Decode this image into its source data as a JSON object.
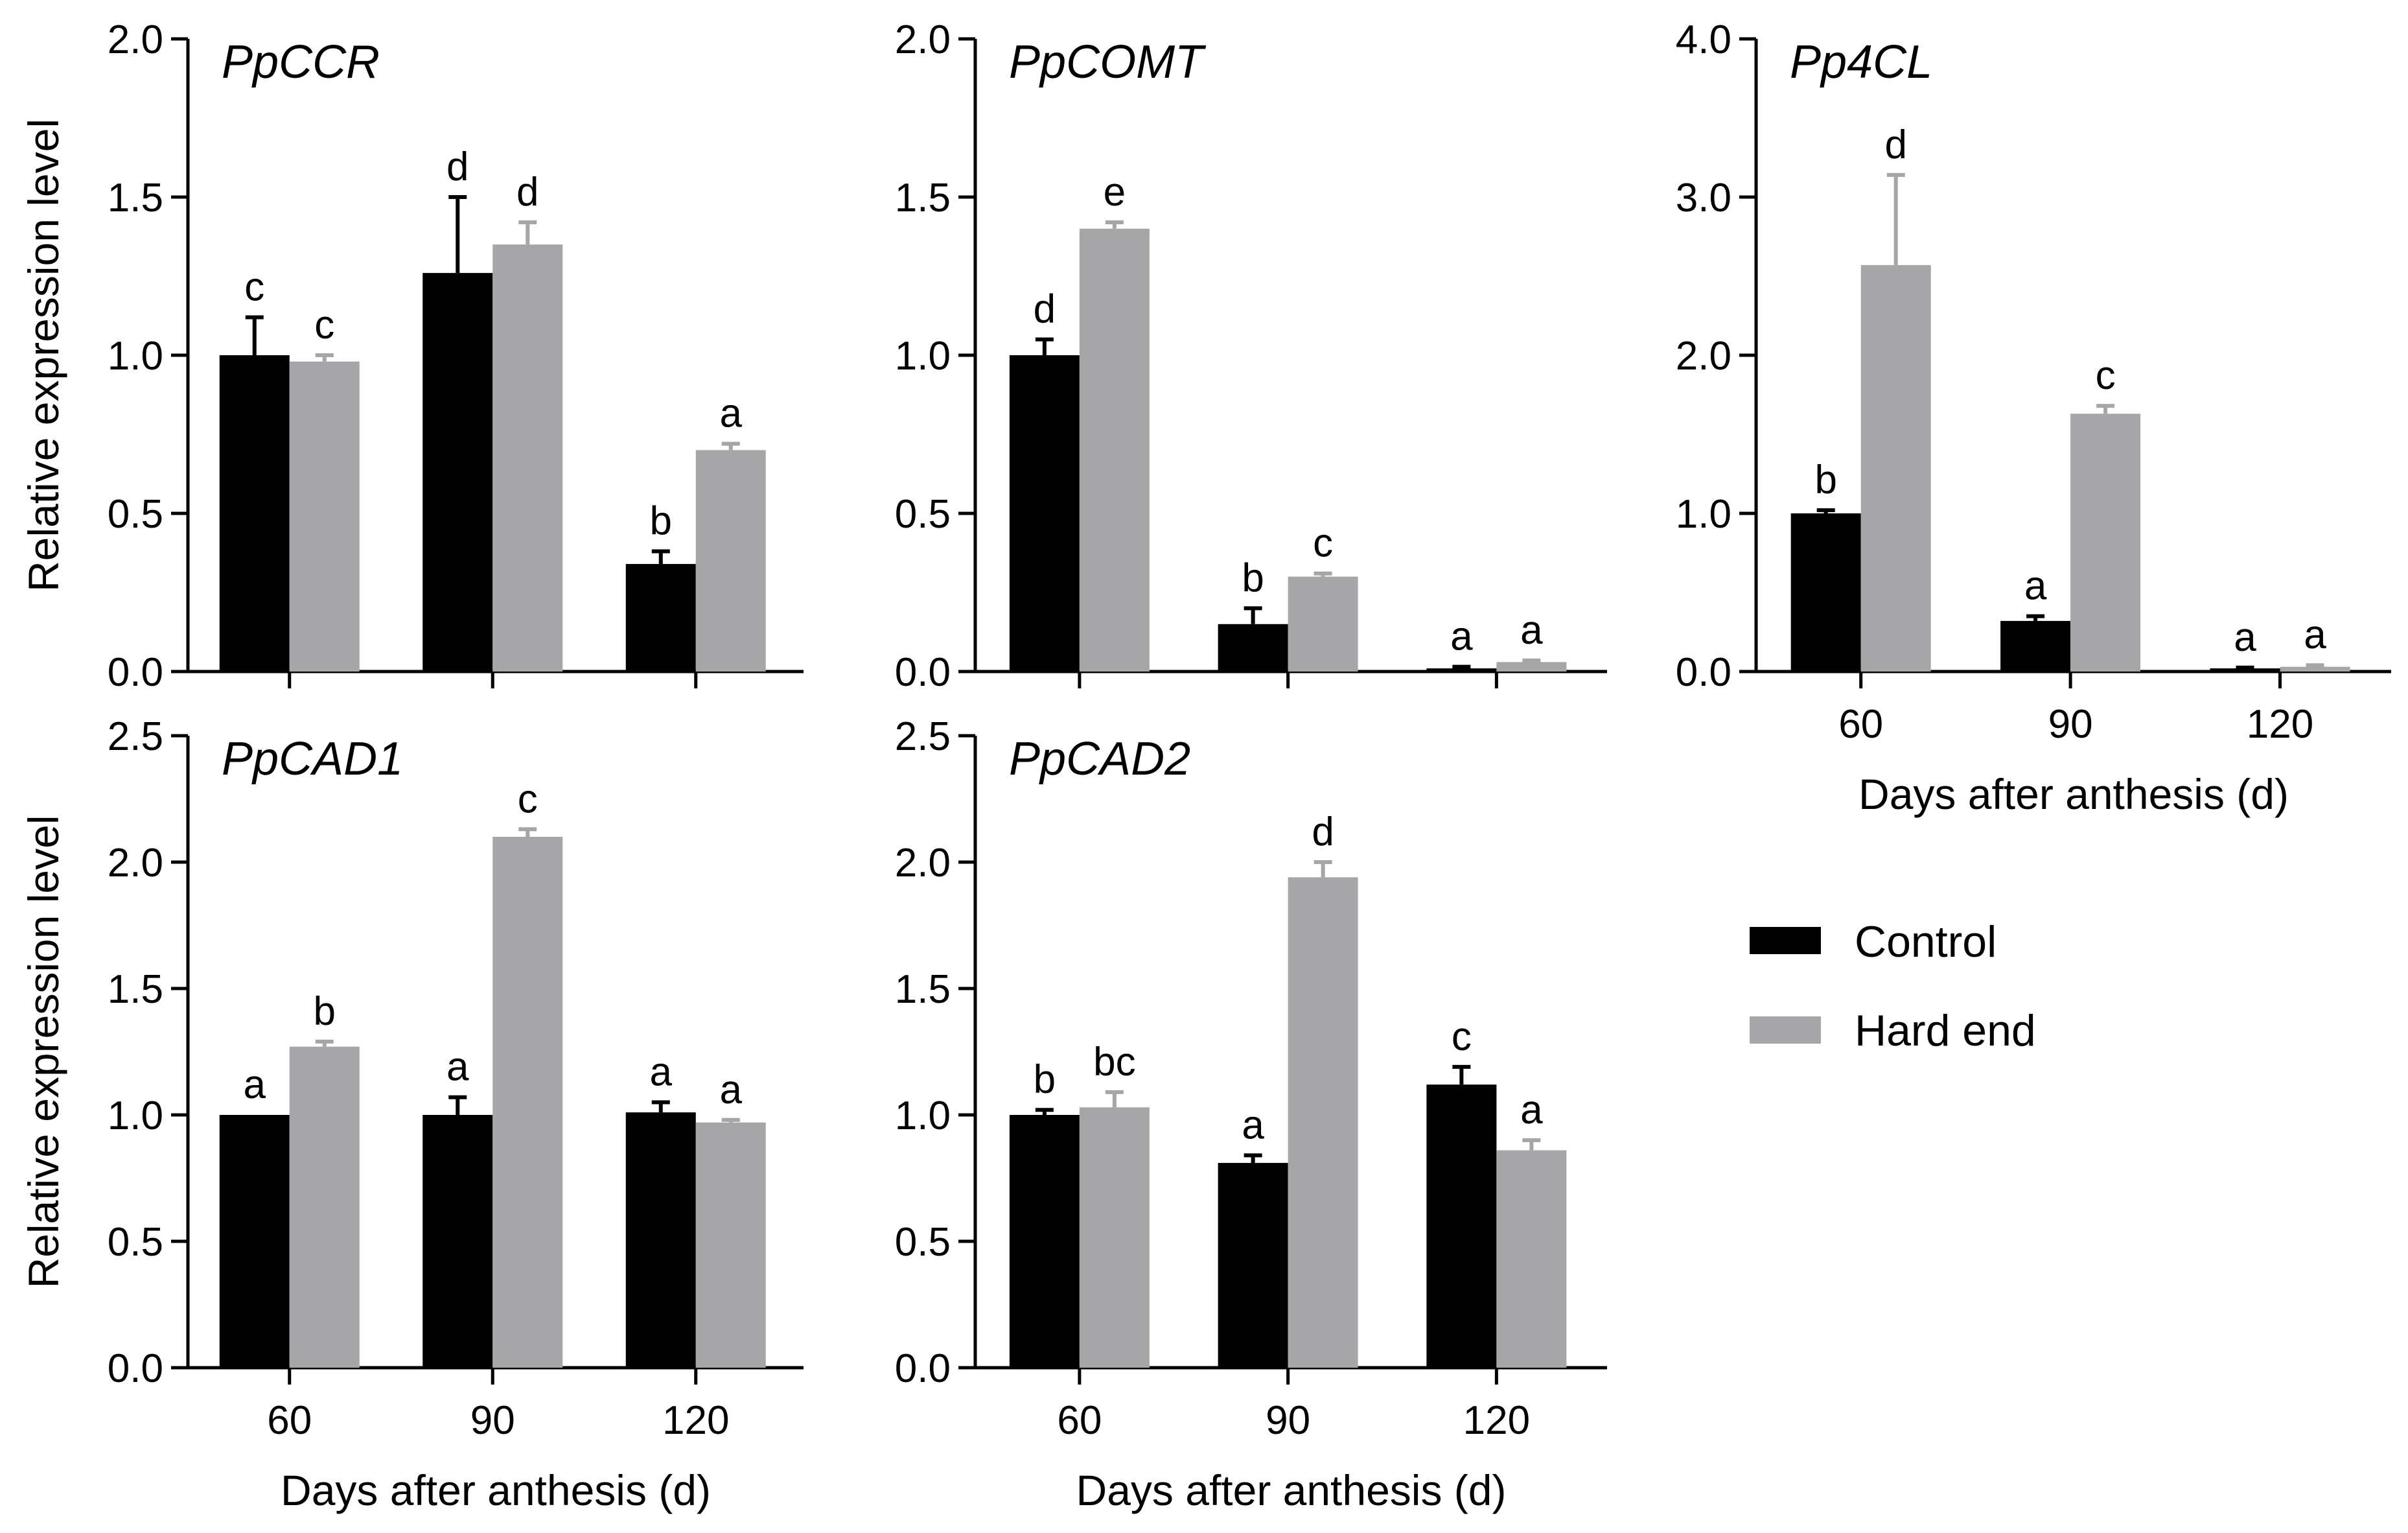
{
  "figure": {
    "legend": {
      "items": [
        {
          "name": "Control",
          "color": "#000000"
        },
        {
          "name": "Hard end",
          "color": "#a6a6a8"
        }
      ]
    }
  },
  "chart_data": [
    {
      "type": "bar",
      "title": "PpCCR",
      "categories": [
        "60",
        "90",
        "120"
      ],
      "xlabel": "",
      "ylabel": "Relative expression level",
      "ylim": [
        0,
        2.0
      ],
      "yticks": [
        "0.0",
        "0.5",
        "1.0",
        "1.5",
        "2.0"
      ],
      "series": [
        {
          "name": "Control",
          "values": [
            1.0,
            1.26,
            0.34
          ],
          "errors": [
            0.12,
            0.24,
            0.04
          ],
          "letters": [
            "c",
            "d",
            "b"
          ]
        },
        {
          "name": "Hard end",
          "values": [
            0.98,
            1.35,
            0.7
          ],
          "errors": [
            0.02,
            0.07,
            0.02
          ],
          "letters": [
            "c",
            "d",
            "a"
          ]
        }
      ]
    },
    {
      "type": "bar",
      "title": "PpCOMT",
      "categories": [
        "60",
        "90",
        "120"
      ],
      "xlabel": "",
      "ylabel": "",
      "ylim": [
        0,
        2.0
      ],
      "yticks": [
        "0.0",
        "0.5",
        "1.0",
        "1.5",
        "2.0"
      ],
      "series": [
        {
          "name": "Control",
          "values": [
            1.0,
            0.15,
            0.01
          ],
          "errors": [
            0.05,
            0.05,
            0.005
          ],
          "letters": [
            "d",
            "b",
            "a"
          ]
        },
        {
          "name": "Hard end",
          "values": [
            1.4,
            0.3,
            0.03
          ],
          "errors": [
            0.02,
            0.01,
            0.005
          ],
          "letters": [
            "e",
            "c",
            "a"
          ]
        }
      ]
    },
    {
      "type": "bar",
      "title": "Pp4CL",
      "categories": [
        "60",
        "90",
        "120"
      ],
      "xlabel": "Days after anthesis (d)",
      "ylabel": "",
      "ylim": [
        0,
        4.0
      ],
      "yticks": [
        "0.0",
        "1.0",
        "2.0",
        "3.0",
        "4.0"
      ],
      "series": [
        {
          "name": "Control",
          "values": [
            1.0,
            0.32,
            0.02
          ],
          "errors": [
            0.02,
            0.03,
            0.005
          ],
          "letters": [
            "b",
            "a",
            "a"
          ]
        },
        {
          "name": "Hard end",
          "values": [
            2.57,
            1.63,
            0.03
          ],
          "errors": [
            0.57,
            0.05,
            0.01
          ],
          "letters": [
            "d",
            "c",
            "a"
          ]
        }
      ]
    },
    {
      "type": "bar",
      "title": "PpCAD1",
      "categories": [
        "60",
        "90",
        "120"
      ],
      "xlabel": "Days after anthesis (d)",
      "ylabel": "Relative expression level",
      "ylim": [
        0,
        2.5
      ],
      "yticks": [
        "0.0",
        "0.5",
        "1.0",
        "1.5",
        "2.0",
        "2.5"
      ],
      "series": [
        {
          "name": "Control",
          "values": [
            1.0,
            1.0,
            1.01
          ],
          "errors": [
            0.0,
            0.07,
            0.04
          ],
          "letters": [
            "a",
            "a",
            "a"
          ]
        },
        {
          "name": "Hard end",
          "values": [
            1.27,
            2.1,
            0.97
          ],
          "errors": [
            0.02,
            0.03,
            0.01
          ],
          "letters": [
            "b",
            "c",
            "a"
          ]
        }
      ]
    },
    {
      "type": "bar",
      "title": "PpCAD2",
      "categories": [
        "60",
        "90",
        "120"
      ],
      "xlabel": "Days after anthesis (d)",
      "ylabel": "",
      "ylim": [
        0,
        2.5
      ],
      "yticks": [
        "0.0",
        "0.5",
        "1.0",
        "1.5",
        "2.0",
        "2.5"
      ],
      "series": [
        {
          "name": "Control",
          "values": [
            1.0,
            0.81,
            1.12
          ],
          "errors": [
            0.02,
            0.03,
            0.07
          ],
          "letters": [
            "b",
            "a",
            "c"
          ]
        },
        {
          "name": "Hard end",
          "values": [
            1.03,
            1.94,
            0.86
          ],
          "errors": [
            0.06,
            0.06,
            0.04
          ],
          "letters": [
            "bc",
            "d",
            "a"
          ]
        }
      ]
    }
  ]
}
